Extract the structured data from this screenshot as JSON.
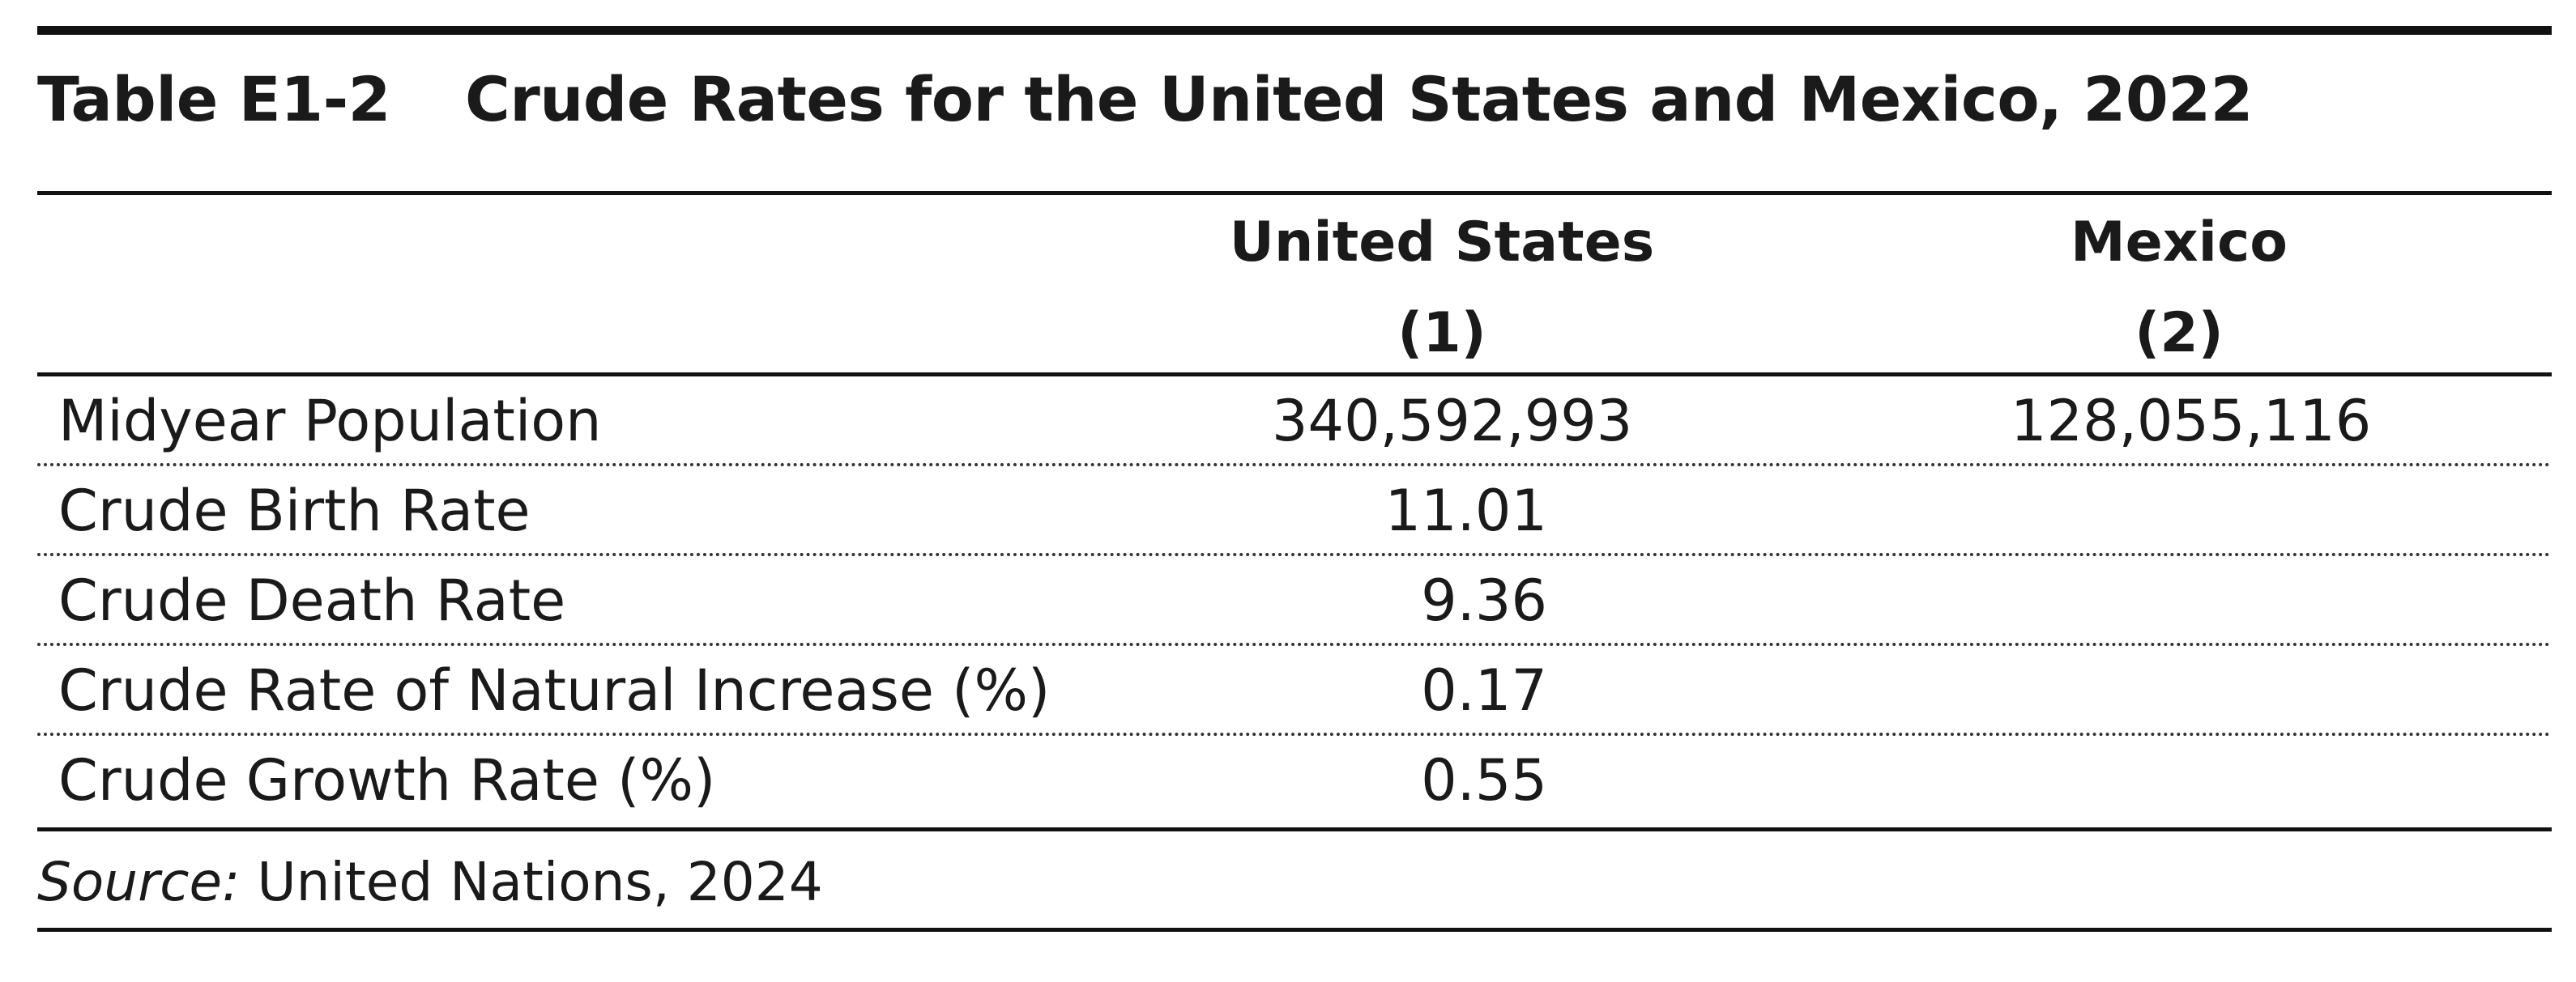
{
  "title": {
    "label": "Table E1-2",
    "text": "Crude Rates for the United States and Mexico, 2022"
  },
  "columns": [
    {
      "name": "United States",
      "number": "(1)"
    },
    {
      "name": "Mexico",
      "number": "(2)"
    }
  ],
  "rows": [
    {
      "label": "Midyear Population",
      "us": "340,592,993",
      "mx": "128,055,116"
    },
    {
      "label": "Crude Birth Rate",
      "us": "11.01",
      "mx": ""
    },
    {
      "label": "Crude Death Rate",
      "us": "9.36",
      "mx": ""
    },
    {
      "label": "Crude Rate of Natural Increase (%)",
      "us": "0.17",
      "mx": ""
    },
    {
      "label": "Crude Growth Rate (%)",
      "us": "0.55",
      "mx": ""
    }
  ],
  "source": {
    "prefix": "Source:",
    "text": " United Nations, 2024"
  }
}
